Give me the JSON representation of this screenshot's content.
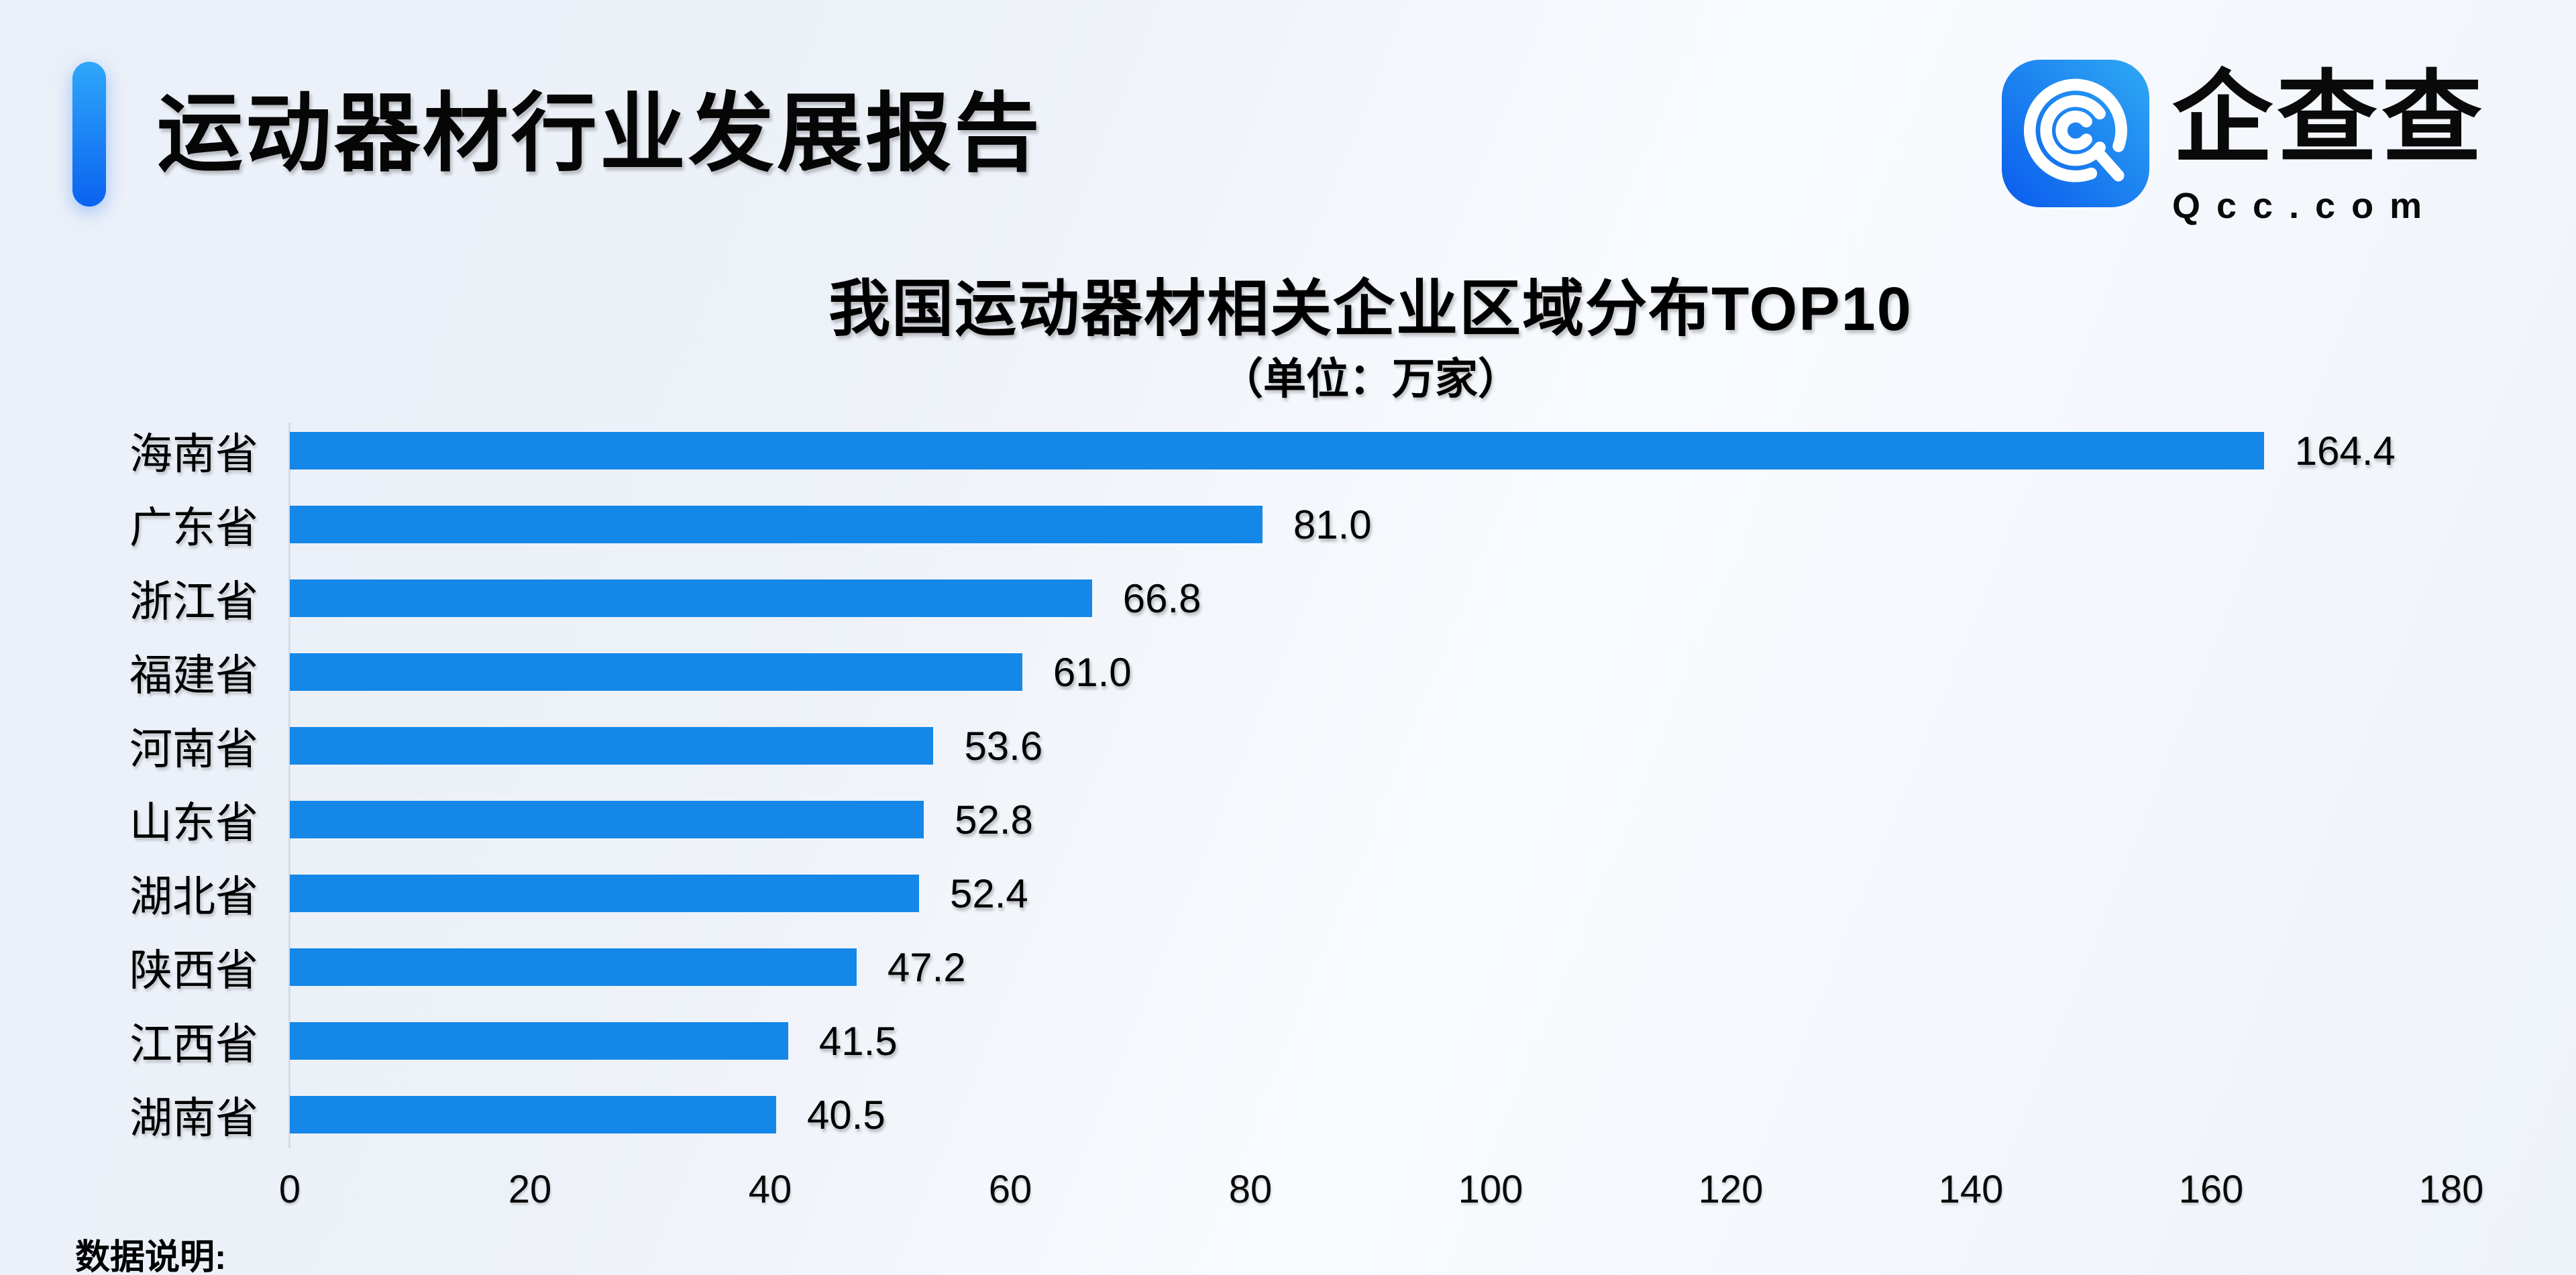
{
  "header": {
    "title": "运动器材行业发展报告"
  },
  "logo": {
    "name": "企查查",
    "domain": "Qcc.com"
  },
  "chart_data": {
    "type": "bar",
    "orientation": "horizontal",
    "title": "我国运动器材相关企业区域分布TOP10",
    "subtitle": "（单位：万家）",
    "unit": "万家",
    "categories": [
      "海南省",
      "广东省",
      "浙江省",
      "福建省",
      "河南省",
      "山东省",
      "湖北省",
      "陕西省",
      "江西省",
      "湖南省"
    ],
    "values": [
      164.4,
      81.0,
      66.8,
      61.0,
      53.6,
      52.8,
      52.4,
      47.2,
      41.5,
      40.5
    ],
    "value_labels": [
      "164.4",
      "81.0",
      "66.8",
      "61.0",
      "53.6",
      "52.8",
      "52.4",
      "47.2",
      "41.5",
      "40.5"
    ],
    "x_ticks": [
      0,
      20,
      40,
      60,
      80,
      100,
      120,
      140,
      160,
      180
    ],
    "xlim": [
      0,
      180
    ],
    "bar_color": "#1487e8",
    "grid": false,
    "legend": false
  },
  "footer": {
    "note_label": "数据说明:"
  },
  "colors": {
    "accent_top": "#2fa7fa",
    "accent_bottom": "#0a63f0",
    "bar": "#1487e8",
    "background": "#edf1f8",
    "axis_line": "#d5dae4"
  }
}
